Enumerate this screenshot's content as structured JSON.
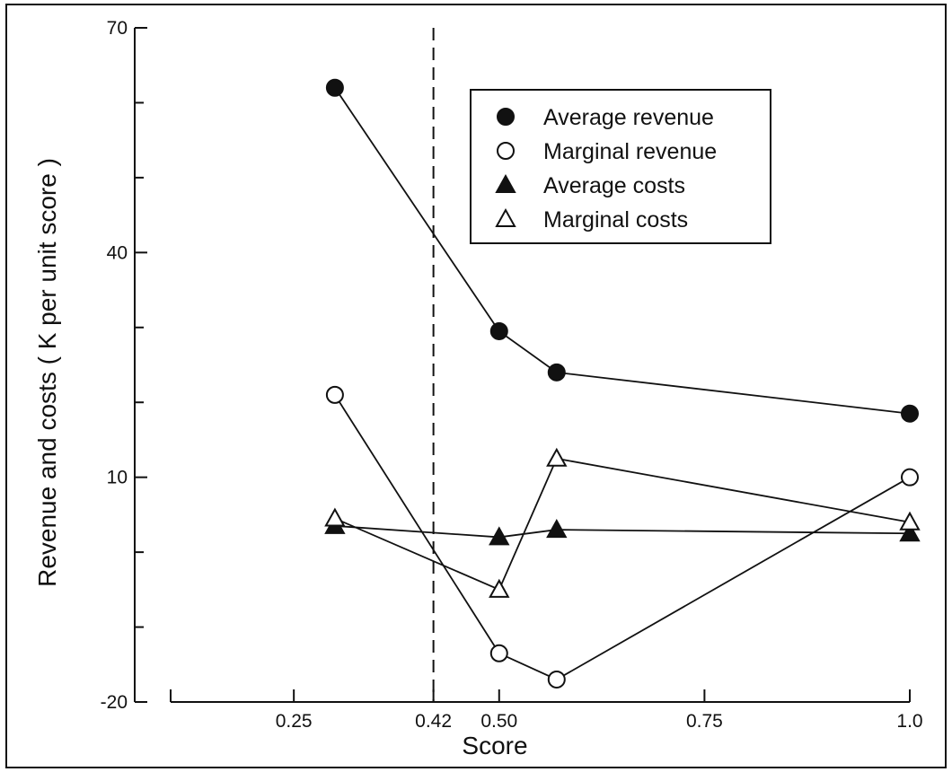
{
  "chart_data": {
    "type": "line",
    "xlabel": "Score",
    "ylabel": "Revenue and costs ( K per unit score )",
    "xlim": [
      0.1,
      1.0
    ],
    "ylim": [
      -20,
      70
    ],
    "x_ticks": [
      {
        "value": 0.25,
        "label": "0.25"
      },
      {
        "value": 0.42,
        "label": "0.42"
      },
      {
        "value": 0.5,
        "label": "0.50"
      },
      {
        "value": 0.75,
        "label": "0.75"
      },
      {
        "value": 1.0,
        "label": "1.0"
      }
    ],
    "y_ticks": [
      {
        "value": 70,
        "label": "70"
      },
      {
        "value": 40,
        "label": "40"
      },
      {
        "value": 10,
        "label": "10"
      },
      {
        "value": -20,
        "label": "-20"
      }
    ],
    "y_minor_ticks": [
      60,
      50,
      30,
      20,
      0,
      -10
    ],
    "reference_line": {
      "x": 0.42,
      "style": "dashed"
    },
    "legend_position": "top-right",
    "series": [
      {
        "name": "Average revenue",
        "marker": "filled-circle",
        "points": [
          [
            0.3,
            62
          ],
          [
            0.5,
            29.5
          ],
          [
            0.57,
            24
          ],
          [
            1.0,
            18.5
          ]
        ]
      },
      {
        "name": "Marginal revenue",
        "marker": "open-circle",
        "points": [
          [
            0.3,
            21
          ],
          [
            0.5,
            -13.5
          ],
          [
            0.57,
            -17
          ],
          [
            1.0,
            10
          ]
        ]
      },
      {
        "name": "Average costs",
        "marker": "filled-triangle",
        "points": [
          [
            0.3,
            3.5
          ],
          [
            0.5,
            2
          ],
          [
            0.57,
            3
          ],
          [
            1.0,
            2.5
          ]
        ]
      },
      {
        "name": "Marginal costs",
        "marker": "open-triangle",
        "points": [
          [
            0.3,
            4.5
          ],
          [
            0.5,
            -5
          ],
          [
            0.57,
            12.5
          ],
          [
            1.0,
            4
          ]
        ]
      }
    ]
  }
}
